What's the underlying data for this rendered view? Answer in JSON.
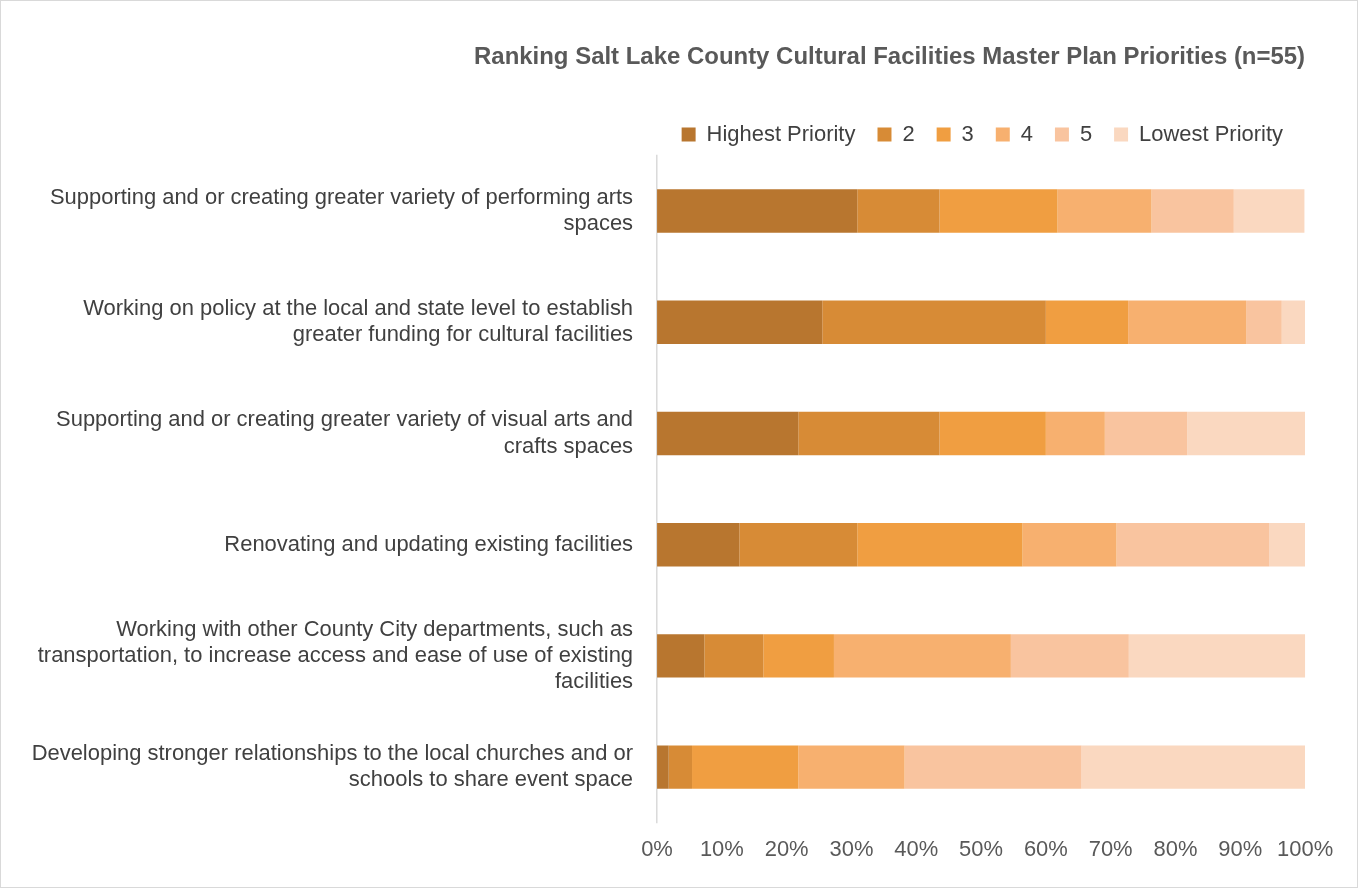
{
  "chart_data": {
    "type": "bar",
    "orientation": "horizontal",
    "stacked": true,
    "title": "Ranking Salt Lake County Cultural Facilities Master Plan Priorities (n=55)",
    "categories": [
      "Supporting and or creating greater variety of performing arts spaces",
      "Working on policy at the local and state level to establish greater funding for cultural facilities",
      "Supporting and or creating greater variety of visual arts and crafts spaces",
      "Renovating and updating existing facilities",
      "Working with other County City departments, such as transportation, to increase access and ease of use of existing facilities",
      "Developing stronger relationships to the local churches and or schools to share event space"
    ],
    "series": [
      {
        "name": "Highest Priority",
        "color": "#b8762f",
        "values": [
          30.9,
          25.5,
          21.8,
          12.7,
          7.3,
          1.8
        ]
      },
      {
        "name": "2",
        "color": "#d78b36",
        "values": [
          12.7,
          34.5,
          21.8,
          18.2,
          9.1,
          3.6
        ]
      },
      {
        "name": "3",
        "color": "#f09e41",
        "values": [
          18.2,
          12.7,
          16.4,
          25.5,
          10.9,
          16.4
        ]
      },
      {
        "name": "4",
        "color": "#f7b06f",
        "values": [
          14.5,
          18.2,
          9.1,
          14.5,
          27.3,
          16.4
        ]
      },
      {
        "name": "5",
        "color": "#f9c49f",
        "values": [
          12.7,
          5.5,
          12.7,
          23.6,
          18.2,
          27.3
        ]
      },
      {
        "name": "Lowest Priority",
        "color": "#fad8c0",
        "values": [
          10.9,
          3.6,
          18.2,
          5.5,
          27.3,
          34.5
        ]
      }
    ],
    "xlim": [
      0,
      100
    ],
    "xticks": [
      {
        "value": 0,
        "label": "0%"
      },
      {
        "value": 10,
        "label": "10%"
      },
      {
        "value": 20,
        "label": "20%"
      },
      {
        "value": 30,
        "label": "30%"
      },
      {
        "value": 40,
        "label": "40%"
      },
      {
        "value": 50,
        "label": "50%"
      },
      {
        "value": 60,
        "label": "60%"
      },
      {
        "value": 70,
        "label": "70%"
      },
      {
        "value": 80,
        "label": "80%"
      },
      {
        "value": 90,
        "label": "90%"
      },
      {
        "value": 100,
        "label": "100%"
      }
    ],
    "grid": false,
    "legend": "top"
  }
}
